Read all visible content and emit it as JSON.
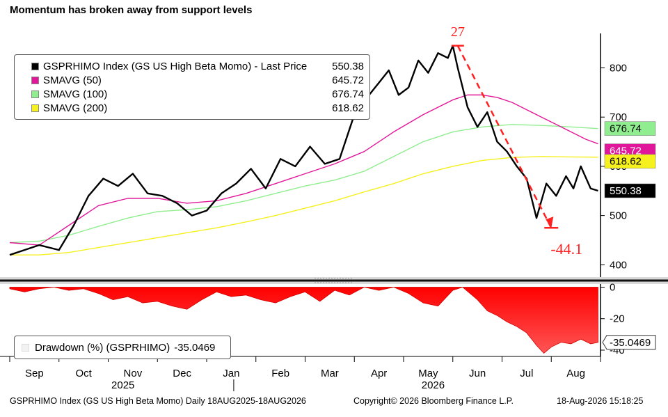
{
  "title": "Momentum has broken away from support levels",
  "legend": {
    "items": [
      {
        "label": "GSPRHIMO Index (GS US High Beta Momo) - Last Price",
        "value": "550.38",
        "color": "#000000"
      },
      {
        "label": "SMAVG (50)",
        "value": "645.72",
        "color": "#e0179a"
      },
      {
        "label": "SMAVG (100)",
        "value": "676.74",
        "color": "#90ee90"
      },
      {
        "label": "SMAVG (200)",
        "value": "618.62",
        "color": "#f5f01e"
      }
    ]
  },
  "drawdown_legend": {
    "label": "Drawdown (%) (GSPRHIMO)",
    "value": "-35.0469"
  },
  "annotations": {
    "peak_label": "27",
    "drop_label": "-44.1"
  },
  "last_value_tags": [
    {
      "text": "676.74",
      "bg": "#90ee90",
      "fg": "#000000"
    },
    {
      "text": "645.72",
      "bg": "#e0179a",
      "fg": "#ffffff"
    },
    {
      "text": "618.62",
      "bg": "#f5f01e",
      "fg": "#000000"
    },
    {
      "text": "550.38",
      "bg": "#000000",
      "fg": "#ffffff"
    }
  ],
  "drawdown_tag": "-35.0469",
  "footer": {
    "left": "GSPRHIMO Index (GS US High Beta Momo) Daily 18AUG2025-18AUG2026",
    "center": "Copyright© 2026 Bloomberg Finance L.P.",
    "right": "18-Aug-2026 15:18:25"
  },
  "chart_data": {
    "type": "line",
    "x_axis": {
      "months": [
        "Sep",
        "Oct",
        "Nov",
        "Dec",
        "Jan",
        "Feb",
        "Mar",
        "Apr",
        "May",
        "Jun",
        "Jul",
        "Aug"
      ],
      "years": [
        "2025",
        "2026"
      ]
    },
    "price_axis": {
      "ticks": [
        400,
        500,
        600,
        700,
        800
      ],
      "range": [
        375,
        870
      ]
    },
    "drawdown_axis": {
      "ticks": [
        0,
        -20,
        -40
      ],
      "range": [
        -44,
        2
      ]
    },
    "series": [
      {
        "name": "GSPRHIMO Index (GS US High Beta Momo) - Last Price",
        "color": "#000000",
        "x": [
          0,
          0.3,
          0.6,
          1,
          1.3,
          1.6,
          1.9,
          2.2,
          2.5,
          2.8,
          3.1,
          3.4,
          3.7,
          4.0,
          4.3,
          4.6,
          4.9,
          5.2,
          5.5,
          5.8,
          6.1,
          6.4,
          6.7,
          7.0,
          7.3,
          7.5,
          7.7,
          7.9,
          8.1,
          8.3,
          8.5,
          8.7,
          8.9,
          9.0,
          9.1,
          9.3,
          9.5,
          9.7,
          9.9,
          10.1,
          10.3,
          10.5,
          10.7,
          10.9,
          11.1,
          11.3,
          11.45,
          11.6,
          11.8,
          11.95
        ],
        "values": [
          420,
          430,
          440,
          430,
          480,
          540,
          575,
          560,
          585,
          545,
          540,
          525,
          500,
          510,
          545,
          565,
          595,
          555,
          615,
          600,
          640,
          605,
          615,
          705,
          745,
          770,
          795,
          745,
          760,
          815,
          790,
          830,
          820,
          845,
          800,
          720,
          680,
          710,
          650,
          630,
          600,
          575,
          495,
          565,
          540,
          580,
          555,
          600,
          555,
          550.38
        ]
      },
      {
        "name": "SMAVG (50)",
        "color": "#e0179a",
        "x": [
          0,
          0.6,
          1.2,
          1.8,
          2.4,
          3.0,
          3.6,
          4.2,
          4.8,
          5.4,
          6.0,
          6.6,
          7.2,
          7.8,
          8.4,
          9.0,
          9.3,
          9.6,
          9.9,
          10.2,
          10.5,
          10.8,
          11.1,
          11.4,
          11.7,
          11.95
        ],
        "values": [
          445,
          440,
          480,
          520,
          535,
          535,
          525,
          530,
          545,
          565,
          585,
          605,
          630,
          670,
          705,
          735,
          745,
          745,
          740,
          730,
          715,
          700,
          685,
          670,
          655,
          645.72
        ]
      },
      {
        "name": "SMAVG (100)",
        "color": "#90ee90",
        "x": [
          0,
          0.6,
          1.2,
          1.8,
          2.4,
          3.0,
          3.6,
          4.2,
          4.8,
          5.4,
          6.0,
          6.6,
          7.2,
          7.8,
          8.4,
          9.0,
          9.6,
          10.2,
          10.8,
          11.4,
          11.95
        ],
        "values": [
          445,
          448,
          460,
          478,
          495,
          508,
          512,
          518,
          530,
          545,
          560,
          572,
          590,
          620,
          650,
          670,
          680,
          685,
          683,
          680,
          676.74
        ]
      },
      {
        "name": "SMAVG (200)",
        "color": "#f5f01e",
        "x": [
          0,
          0.6,
          1.2,
          1.8,
          2.4,
          3.0,
          3.6,
          4.2,
          4.8,
          5.4,
          6.0,
          6.6,
          7.2,
          7.8,
          8.4,
          9.0,
          9.6,
          10.2,
          10.8,
          11.4,
          11.95
        ],
        "values": [
          420,
          420,
          425,
          435,
          445,
          455,
          465,
          475,
          487,
          500,
          515,
          530,
          548,
          565,
          585,
          600,
          612,
          618,
          620,
          619,
          618.62
        ]
      },
      {
        "name": "Drawdown (%) (GSPRHIMO)",
        "color": "#ff0000",
        "type": "area",
        "x": [
          0,
          0.3,
          0.6,
          0.9,
          1.2,
          1.5,
          1.8,
          2.1,
          2.4,
          2.7,
          3.0,
          3.3,
          3.6,
          3.9,
          4.2,
          4.5,
          4.8,
          5.1,
          5.4,
          5.7,
          6.0,
          6.3,
          6.6,
          6.9,
          7.2,
          7.5,
          7.8,
          8.1,
          8.4,
          8.7,
          9.0,
          9.2,
          9.5,
          9.7,
          9.9,
          10.1,
          10.3,
          10.5,
          10.7,
          10.85,
          11.0,
          11.2,
          11.4,
          11.6,
          11.8,
          11.95
        ],
        "values": [
          -1,
          -3,
          -1,
          0,
          -2,
          -1,
          -4,
          -8,
          -6,
          -10,
          -9,
          -12,
          -14,
          -8,
          -3,
          -6,
          -5,
          -8,
          -10,
          -6,
          -3,
          -9,
          -2,
          -5,
          0,
          -2,
          0,
          -4,
          -10,
          -12,
          -2,
          0,
          -8,
          -15,
          -18,
          -22,
          -25,
          -29,
          -37,
          -42,
          -38,
          -35,
          -36,
          -33,
          -36,
          -35.05
        ]
      }
    ]
  }
}
